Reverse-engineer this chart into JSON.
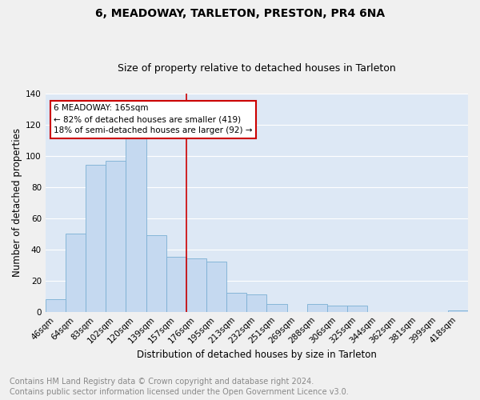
{
  "title": "6, MEADOWAY, TARLETON, PRESTON, PR4 6NA",
  "subtitle": "Size of property relative to detached houses in Tarleton",
  "xlabel": "Distribution of detached houses by size in Tarleton",
  "ylabel": "Number of detached properties",
  "categories": [
    "46sqm",
    "64sqm",
    "83sqm",
    "102sqm",
    "120sqm",
    "139sqm",
    "157sqm",
    "176sqm",
    "195sqm",
    "213sqm",
    "232sqm",
    "251sqm",
    "269sqm",
    "288sqm",
    "306sqm",
    "325sqm",
    "344sqm",
    "362sqm",
    "381sqm",
    "399sqm",
    "418sqm"
  ],
  "values": [
    8,
    50,
    94,
    97,
    113,
    49,
    35,
    34,
    32,
    12,
    11,
    5,
    0,
    5,
    4,
    4,
    0,
    0,
    0,
    0,
    1
  ],
  "bar_color": "#c5d9f0",
  "bar_edge_color": "#7bafd4",
  "background_color": "#dde8f5",
  "grid_color": "#ffffff",
  "vline_color": "#cc0000",
  "annotation_line1": "6 MEADOWAY: 165sqm",
  "annotation_line2": "← 82% of detached houses are smaller (419)",
  "annotation_line3": "18% of semi-detached houses are larger (92) →",
  "annotation_box_color": "#ffffff",
  "annotation_box_edge": "#cc0000",
  "footer_line1": "Contains HM Land Registry data © Crown copyright and database right 2024.",
  "footer_line2": "Contains public sector information licensed under the Open Government Licence v3.0.",
  "ylim": [
    0,
    140
  ],
  "title_fontsize": 10,
  "subtitle_fontsize": 9,
  "axis_label_fontsize": 8.5,
  "tick_fontsize": 7.5,
  "footer_fontsize": 7
}
